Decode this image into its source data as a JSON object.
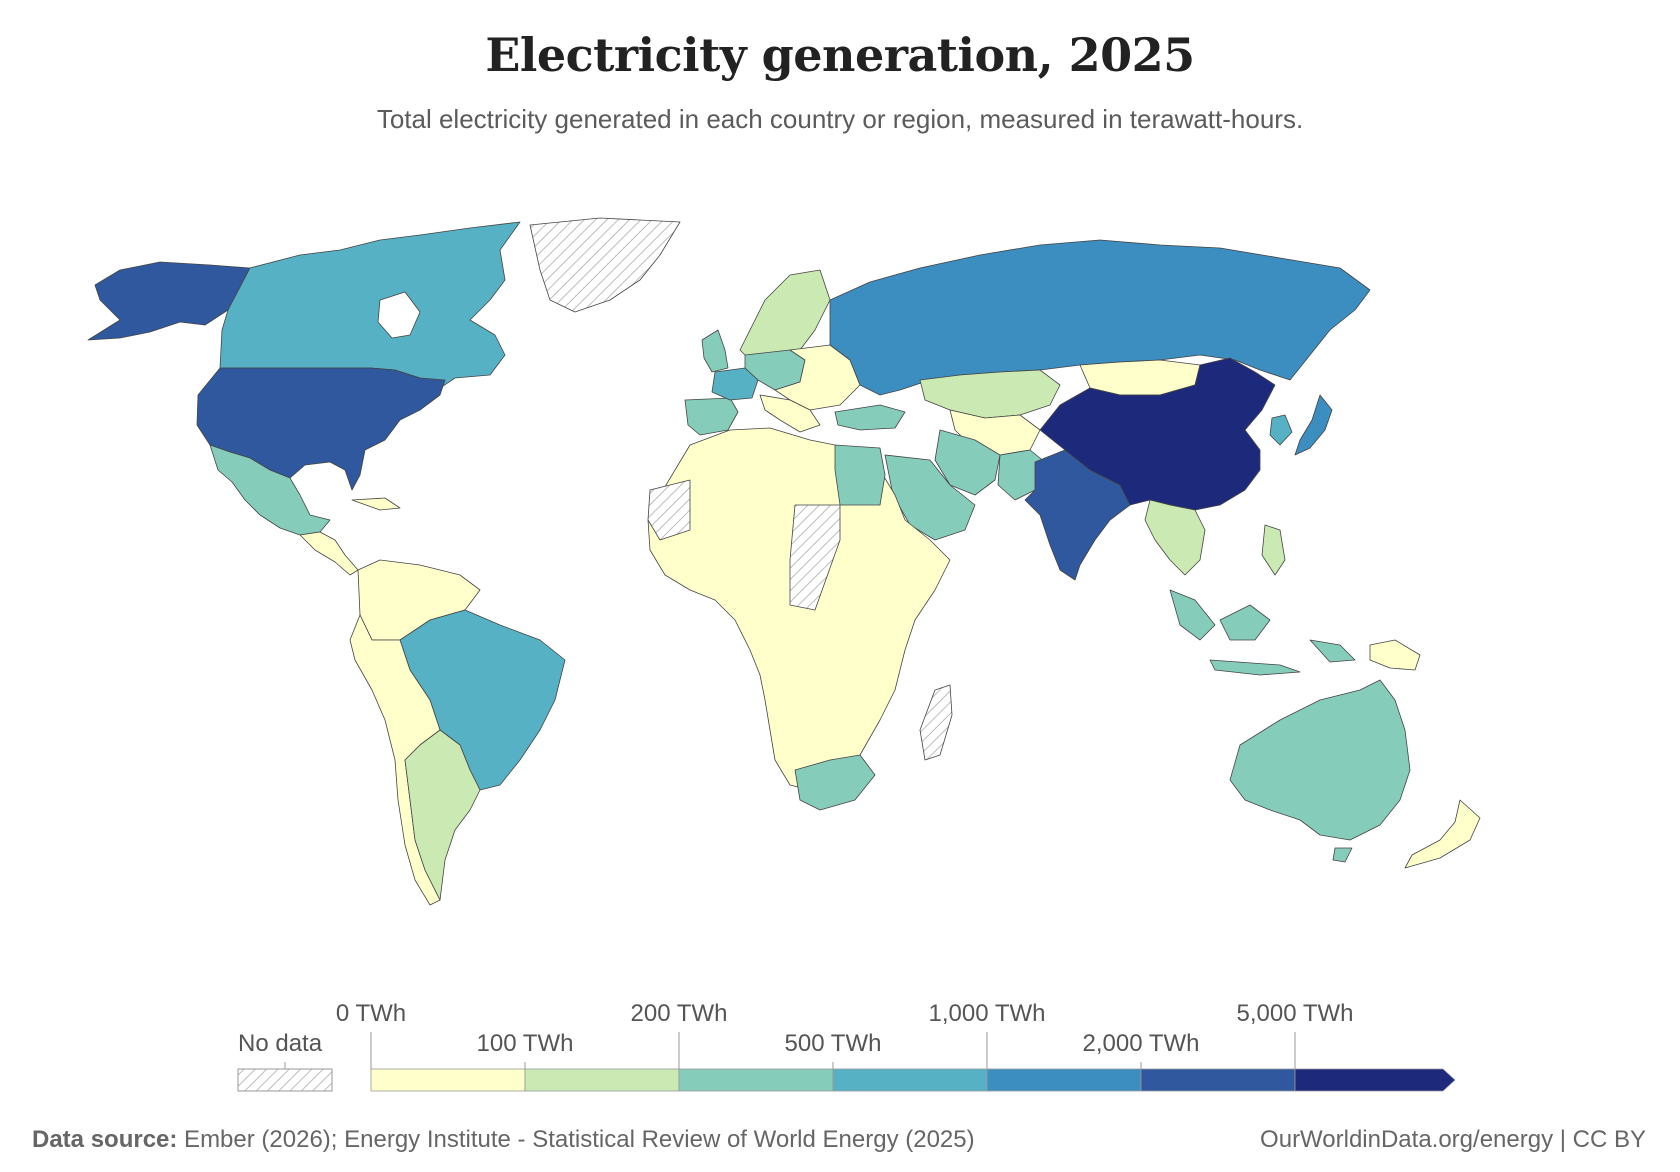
{
  "header": {
    "title": "Electricity generation, 2025",
    "subtitle": "Total electricity generated in each country or region, measured in terawatt-hours."
  },
  "legend": {
    "no_data_label": "No data",
    "bins": [
      {
        "label": "0 TWh",
        "color": "#ffffcc"
      },
      {
        "label": "100 TWh",
        "color": "#cbeab3"
      },
      {
        "label": "200 TWh",
        "color": "#86ccbb"
      },
      {
        "label": "500 TWh",
        "color": "#56b1c4"
      },
      {
        "label": "1,000 TWh",
        "color": "#3c8dc0"
      },
      {
        "label": "2,000 TWh",
        "color": "#2f589f"
      },
      {
        "label": "5,000 TWh",
        "color": "#1d2a7c"
      }
    ]
  },
  "map": {
    "regions": [
      {
        "name": "Canada",
        "bin": "500 TWh"
      },
      {
        "name": "Alaska",
        "bin": "2,000 TWh"
      },
      {
        "name": "Greenland",
        "bin": "No data"
      },
      {
        "name": "United States",
        "bin": "2,000 TWh"
      },
      {
        "name": "Mexico",
        "bin": "200 TWh"
      },
      {
        "name": "Central America",
        "bin": "0 TWh"
      },
      {
        "name": "Colombia/Venezuela",
        "bin": "0 TWh"
      },
      {
        "name": "Brazil",
        "bin": "500 TWh"
      },
      {
        "name": "Argentina",
        "bin": "100 TWh"
      },
      {
        "name": "Chile/Peru/Bolivia",
        "bin": "0 TWh"
      },
      {
        "name": "Iberia",
        "bin": "200 TWh"
      },
      {
        "name": "France",
        "bin": "500 TWh"
      },
      {
        "name": "UK",
        "bin": "200 TWh"
      },
      {
        "name": "Central Europe",
        "bin": "200 TWh"
      },
      {
        "name": "Scandinavia",
        "bin": "100 TWh"
      },
      {
        "name": "Eastern Europe",
        "bin": "0 TWh"
      },
      {
        "name": "Russia",
        "bin": "1,000 TWh"
      },
      {
        "name": "Turkey",
        "bin": "200 TWh"
      },
      {
        "name": "Kazakhstan",
        "bin": "100 TWh"
      },
      {
        "name": "Mongolia",
        "bin": "0 TWh"
      },
      {
        "name": "Central Asia",
        "bin": "0 TWh"
      },
      {
        "name": "Iran",
        "bin": "200 TWh"
      },
      {
        "name": "Saudi Arabia",
        "bin": "200 TWh"
      },
      {
        "name": "Egypt",
        "bin": "200 TWh"
      },
      {
        "name": "Pakistan",
        "bin": "200 TWh"
      },
      {
        "name": "India",
        "bin": "2,000 TWh"
      },
      {
        "name": "China",
        "bin": "5,000 TWh"
      },
      {
        "name": "Japan",
        "bin": "1,000 TWh"
      },
      {
        "name": "South Korea",
        "bin": "500 TWh"
      },
      {
        "name": "Southeast Asia",
        "bin": "100 TWh"
      },
      {
        "name": "Indonesia",
        "bin": "200 TWh"
      },
      {
        "name": "Africa",
        "bin": "0 TWh"
      },
      {
        "name": "Western Sahara/Sudan region",
        "bin": "No data"
      },
      {
        "name": "South Africa",
        "bin": "200 TWh"
      },
      {
        "name": "Madagascar",
        "bin": "No data"
      },
      {
        "name": "Australia",
        "bin": "200 TWh"
      },
      {
        "name": "Papua New Guinea",
        "bin": "0 TWh"
      },
      {
        "name": "New Zealand",
        "bin": "0 TWh"
      }
    ]
  },
  "footer": {
    "source_label": "Data source:",
    "source_text": " Ember (2026); Energy Institute - Statistical Review of World Energy (2025)",
    "right_text": "OurWorldinData.org/energy | CC BY"
  }
}
